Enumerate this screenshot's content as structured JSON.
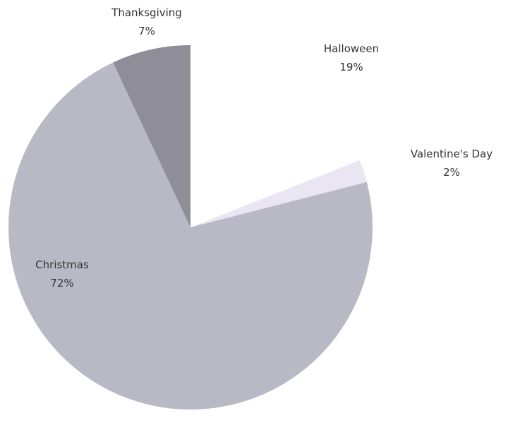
{
  "chart_data": {
    "type": "pie",
    "title": "",
    "start_angle_deg": 0,
    "direction": "clockwise",
    "legend": "none",
    "slices": [
      {
        "label": "Halloween",
        "value": 19,
        "value_label": "19%",
        "color": "#ffffff"
      },
      {
        "label": "Valentine's Day",
        "value": 2,
        "value_label": "2%",
        "color": "#e9e5f3"
      },
      {
        "label": "Christmas",
        "value": 72,
        "value_label": "72%",
        "color": "#b9b8c5"
      },
      {
        "label": "Thanksgiving",
        "value": 7,
        "value_label": "7%",
        "color": "#8e8d98"
      }
    ]
  }
}
